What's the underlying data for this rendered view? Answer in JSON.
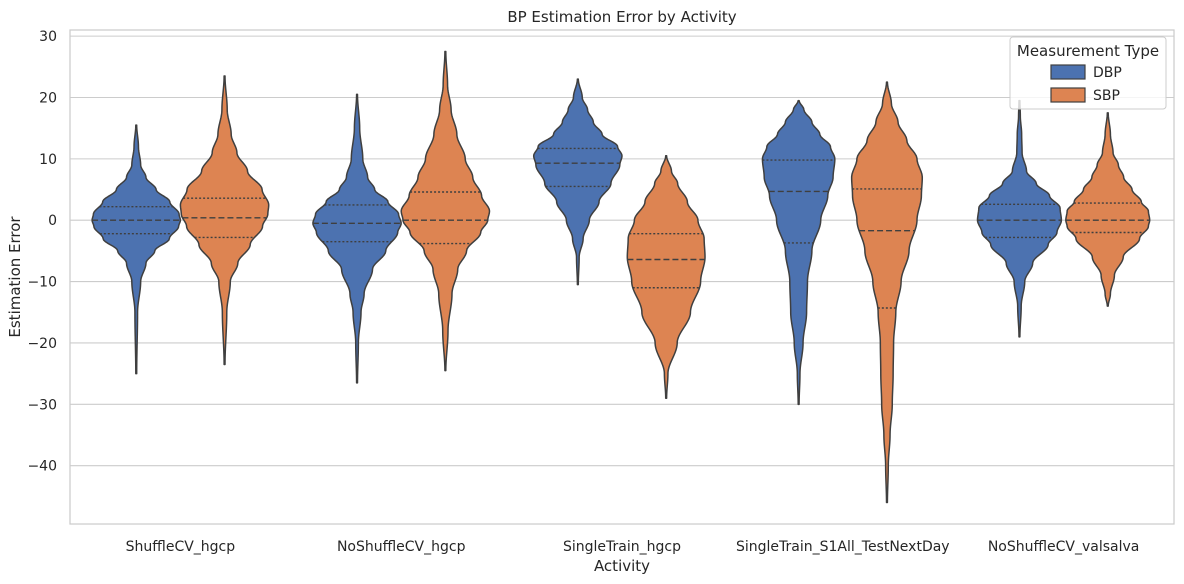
{
  "chart_data": {
    "type": "violin",
    "title": "BP Estimation Error by Activity",
    "xlabel": "Activity",
    "ylabel": "Estimation Error",
    "ylim": [
      -49.5,
      31
    ],
    "yticks": [
      30,
      20,
      10,
      0,
      -10,
      -20,
      -30,
      -40
    ],
    "grid": "horizontal",
    "legend_position": "top-right",
    "legend_title": "Measurement Type",
    "categories": [
      "ShuffleCV_hgcp",
      "NoShuffleCV_hgcp",
      "SingleTrain_hgcp",
      "SingleTrain_S1All_TestNextDay",
      "NoShuffleCV_valsalva"
    ],
    "series": [
      {
        "name": "DBP",
        "color": "#4c72b0",
        "violins": [
          {
            "min": -25,
            "max": 15.5,
            "q1": -2.2,
            "median": 0,
            "q3": 2.2,
            "shape": [
              [
                -25,
                0.01
              ],
              [
                -15,
                0.03
              ],
              [
                -10,
                0.1
              ],
              [
                -7,
                0.22
              ],
              [
                -5,
                0.42
              ],
              [
                -3,
                0.75
              ],
              [
                -1,
                0.96
              ],
              [
                0,
                1.0
              ],
              [
                1,
                0.97
              ],
              [
                3,
                0.76
              ],
              [
                5,
                0.45
              ],
              [
                7,
                0.22
              ],
              [
                9,
                0.1
              ],
              [
                12,
                0.05
              ],
              [
                15.5,
                0.01
              ]
            ]
          },
          {
            "min": -26.5,
            "max": 20.5,
            "q1": -3.5,
            "median": -0.5,
            "q3": 2.5,
            "shape": [
              [
                -26.5,
                0.01
              ],
              [
                -20,
                0.03
              ],
              [
                -15,
                0.09
              ],
              [
                -12,
                0.16
              ],
              [
                -8,
                0.35
              ],
              [
                -5,
                0.65
              ],
              [
                -2,
                0.92
              ],
              [
                -0.5,
                1.0
              ],
              [
                1,
                0.94
              ],
              [
                3,
                0.7
              ],
              [
                5,
                0.4
              ],
              [
                7,
                0.24
              ],
              [
                10,
                0.13
              ],
              [
                15,
                0.06
              ],
              [
                20.5,
                0.01
              ]
            ]
          },
          {
            "min": -10.5,
            "max": 23,
            "q1": 5.5,
            "median": 9.3,
            "q3": 11.7,
            "shape": [
              [
                -10.5,
                0.01
              ],
              [
                -6,
                0.03
              ],
              [
                -3,
                0.12
              ],
              [
                0,
                0.26
              ],
              [
                3,
                0.48
              ],
              [
                6,
                0.75
              ],
              [
                9,
                0.95
              ],
              [
                10.5,
                1.0
              ],
              [
                12,
                0.9
              ],
              [
                14,
                0.55
              ],
              [
                16,
                0.35
              ],
              [
                18,
                0.22
              ],
              [
                20,
                0.1
              ],
              [
                23,
                0.01
              ]
            ]
          },
          {
            "min": -30,
            "max": 19.5,
            "q1": -3.7,
            "median": 4.7,
            "q3": 9.8,
            "shape": [
              [
                -30,
                0.01
              ],
              [
                -25,
                0.03
              ],
              [
                -20,
                0.1
              ],
              [
                -15,
                0.18
              ],
              [
                -10,
                0.2
              ],
              [
                -5,
                0.3
              ],
              [
                0,
                0.5
              ],
              [
                4,
                0.66
              ],
              [
                7,
                0.78
              ],
              [
                10,
                0.82
              ],
              [
                12,
                0.72
              ],
              [
                14,
                0.48
              ],
              [
                16,
                0.3
              ],
              [
                18,
                0.12
              ],
              [
                19.5,
                0.01
              ]
            ]
          },
          {
            "min": -19,
            "max": 19.5,
            "q1": -2.8,
            "median": 0,
            "q3": 2.6,
            "shape": [
              [
                -19,
                0.01
              ],
              [
                -14,
                0.04
              ],
              [
                -10,
                0.12
              ],
              [
                -7,
                0.3
              ],
              [
                -4,
                0.65
              ],
              [
                -2,
                0.85
              ],
              [
                0,
                0.95
              ],
              [
                2,
                0.92
              ],
              [
                4,
                0.68
              ],
              [
                6,
                0.38
              ],
              [
                8,
                0.16
              ],
              [
                11,
                0.06
              ],
              [
                14,
                0.05
              ],
              [
                17,
                0.02
              ],
              [
                19.5,
                0.01
              ]
            ]
          }
        ]
      },
      {
        "name": "SBP",
        "color": "#dd8452",
        "violins": [
          {
            "min": -23.5,
            "max": 23.5,
            "q1": -2.8,
            "median": 0.4,
            "q3": 3.6,
            "shape": [
              [
                -23.5,
                0.01
              ],
              [
                -15,
                0.05
              ],
              [
                -10,
                0.13
              ],
              [
                -7,
                0.3
              ],
              [
                -4,
                0.58
              ],
              [
                -1,
                0.86
              ],
              [
                1,
                0.98
              ],
              [
                2.5,
                1.0
              ],
              [
                5,
                0.85
              ],
              [
                8,
                0.52
              ],
              [
                11,
                0.28
              ],
              [
                14,
                0.15
              ],
              [
                18,
                0.06
              ],
              [
                23.5,
                0.01
              ]
            ]
          },
          {
            "min": -24.5,
            "max": 27.5,
            "q1": -3.8,
            "median": 0,
            "q3": 4.6,
            "shape": [
              [
                -24.5,
                0.01
              ],
              [
                -18,
                0.06
              ],
              [
                -12,
                0.15
              ],
              [
                -8,
                0.28
              ],
              [
                -5,
                0.48
              ],
              [
                -2,
                0.8
              ],
              [
                0,
                0.96
              ],
              [
                1.5,
                1.0
              ],
              [
                4,
                0.82
              ],
              [
                7,
                0.62
              ],
              [
                10,
                0.45
              ],
              [
                14,
                0.26
              ],
              [
                18,
                0.13
              ],
              [
                22,
                0.05
              ],
              [
                27.5,
                0.01
              ]
            ]
          },
          {
            "min": -29,
            "max": 10.5,
            "q1": -11,
            "median": -6.4,
            "q3": -2.2,
            "shape": [
              [
                -29,
                0.01
              ],
              [
                -25,
                0.04
              ],
              [
                -20,
                0.25
              ],
              [
                -15,
                0.55
              ],
              [
                -10,
                0.78
              ],
              [
                -6,
                0.88
              ],
              [
                -3,
                0.86
              ],
              [
                0,
                0.72
              ],
              [
                3,
                0.48
              ],
              [
                6,
                0.26
              ],
              [
                8,
                0.12
              ],
              [
                10.5,
                0.01
              ]
            ]
          },
          {
            "min": -46,
            "max": 22.5,
            "q1": -14.3,
            "median": -1.7,
            "q3": 5.1,
            "shape": [
              [
                -46,
                0.01
              ],
              [
                -40,
                0.03
              ],
              [
                -35,
                0.07
              ],
              [
                -30,
                0.12
              ],
              [
                -25,
                0.14
              ],
              [
                -20,
                0.15
              ],
              [
                -15,
                0.2
              ],
              [
                -10,
                0.32
              ],
              [
                -5,
                0.5
              ],
              [
                0,
                0.68
              ],
              [
                4,
                0.78
              ],
              [
                7,
                0.8
              ],
              [
                10,
                0.68
              ],
              [
                13,
                0.45
              ],
              [
                16,
                0.25
              ],
              [
                19,
                0.1
              ],
              [
                22.5,
                0.01
              ]
            ]
          },
          {
            "min": -14,
            "max": 17.5,
            "q1": -2,
            "median": 0,
            "q3": 2.8,
            "shape": [
              [
                -14,
                0.01
              ],
              [
                -12,
                0.06
              ],
              [
                -9,
                0.15
              ],
              [
                -6,
                0.35
              ],
              [
                -3,
                0.72
              ],
              [
                -1,
                0.92
              ],
              [
                0,
                0.95
              ],
              [
                1.5,
                0.92
              ],
              [
                3,
                0.76
              ],
              [
                5,
                0.55
              ],
              [
                7,
                0.36
              ],
              [
                9,
                0.24
              ],
              [
                11,
                0.12
              ],
              [
                14,
                0.06
              ],
              [
                17.5,
                0.01
              ]
            ]
          }
        ]
      }
    ]
  }
}
